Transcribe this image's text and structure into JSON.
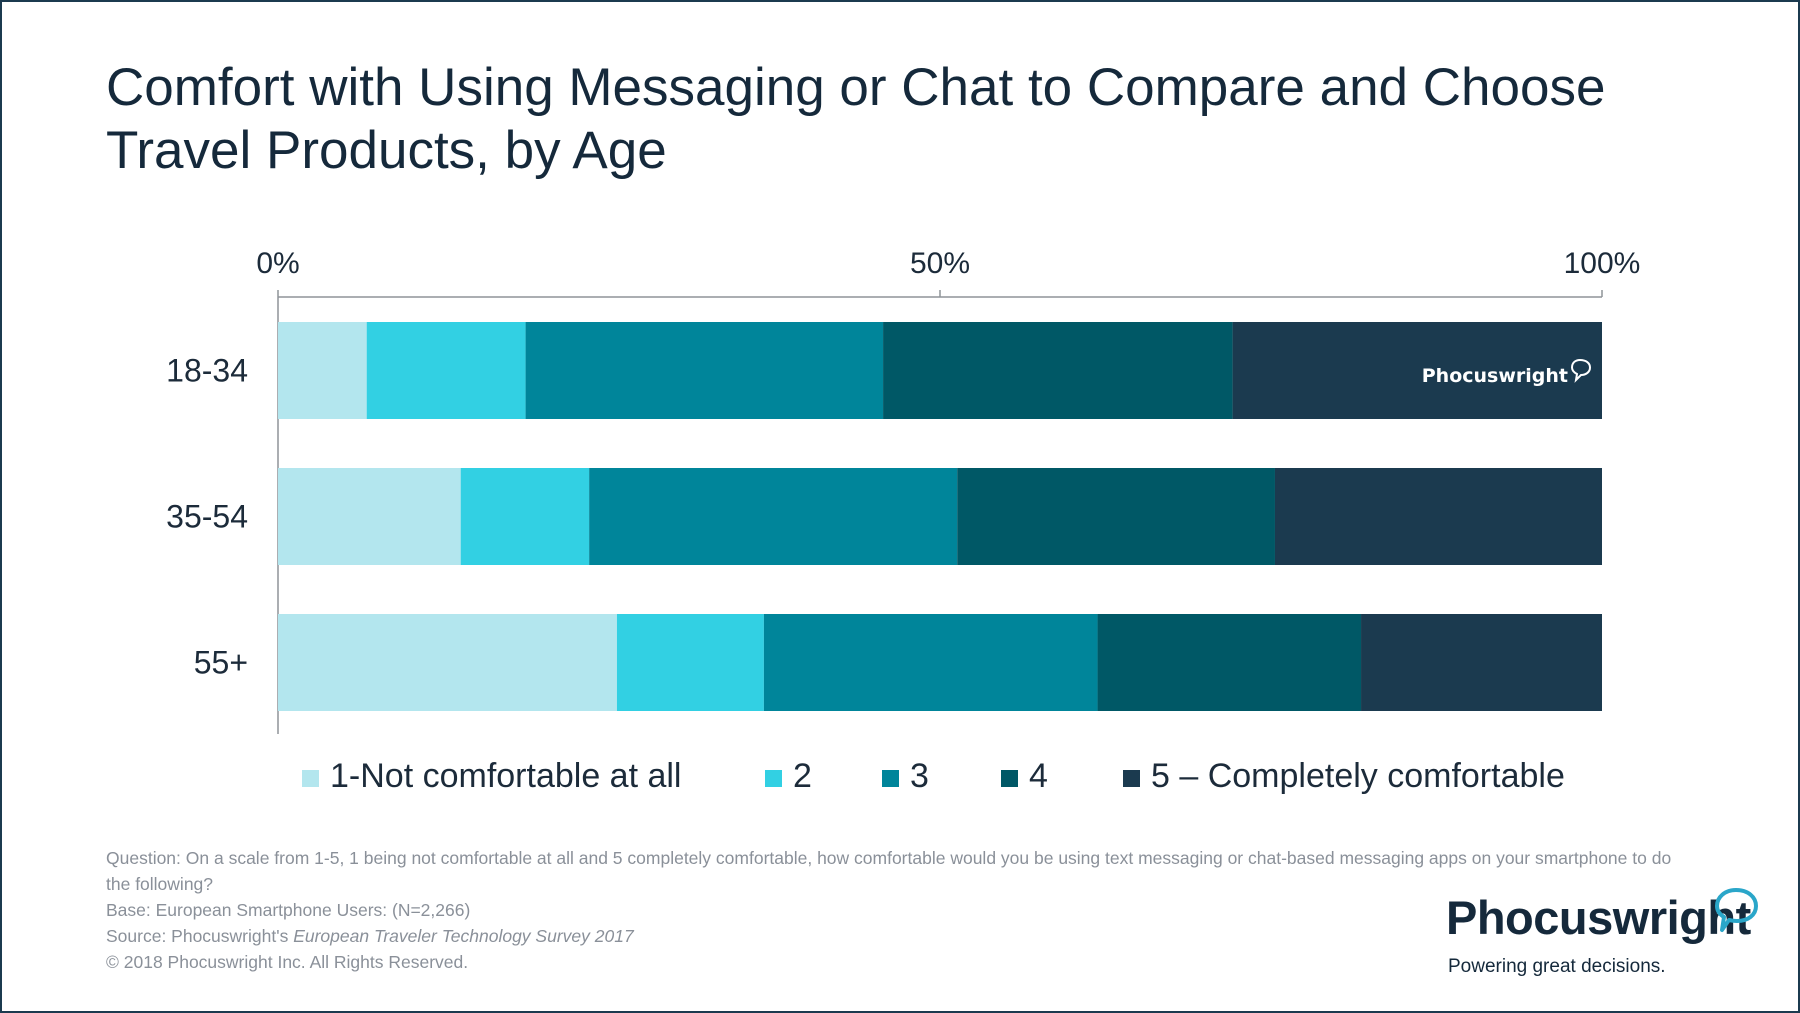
{
  "title": {
    "line1": "Comfort with Using Messaging or Chat to Compare and Choose",
    "line2": "Travel Products, by Age"
  },
  "chart_data": {
    "type": "bar",
    "orientation": "horizontal",
    "stacked": true,
    "normalized": true,
    "categories": [
      "18-34",
      "35-54",
      "55+"
    ],
    "x_ticks": [
      "0%",
      "50%",
      "100%"
    ],
    "xlim": [
      0,
      100
    ],
    "series": [
      {
        "name": "1-Not comfortable at all",
        "color": "#b3e6ee",
        "values": [
          6.7,
          13.8,
          25.6
        ]
      },
      {
        "name": "2",
        "color": "#32d0e3",
        "values": [
          12.0,
          9.7,
          11.1
        ]
      },
      {
        "name": "3",
        "color": "#00859a",
        "values": [
          27.0,
          27.8,
          25.2
        ]
      },
      {
        "name": "4",
        "color": "#005866",
        "values": [
          26.4,
          24.0,
          19.9
        ]
      },
      {
        "name": "5 – Completely comfortable",
        "color": "#1b3a4f",
        "values": [
          27.9,
          24.7,
          18.2
        ]
      }
    ],
    "legend_position": "bottom",
    "grid": false
  },
  "watermark": "Phocuswright",
  "notes": {
    "question": "Question: On a scale from 1-5, 1 being not comfortable at all and 5 completely comfortable, how comfortable would you be using text messaging or chat-based messaging apps on your smartphone to do the following?",
    "base": "Base: European Smartphone Users: (N=2,266)",
    "source_prefix": "Source: Phocuswright's ",
    "source_title": "European Traveler Technology Survey 2017",
    "copyright": "© 2018 Phocuswright Inc. All Rights Reserved."
  },
  "brand": {
    "name": "Phocuswright",
    "tagline": "Powering great decisions."
  }
}
